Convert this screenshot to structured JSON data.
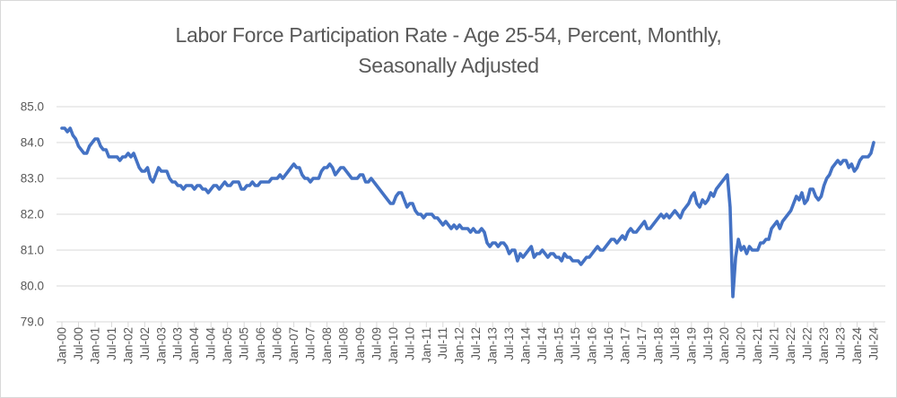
{
  "chart_data": {
    "type": "line",
    "title": "Labor Force Participation Rate - Age 25-54, Percent, Monthly, Seasonally Adjusted",
    "title_lines": [
      "Labor Force Participation Rate - Age 25-54, Percent, Monthly,",
      "Seasonally Adjusted"
    ],
    "xlabel": "",
    "ylabel": "",
    "legend": "none",
    "grid": "horizontal",
    "ylim": [
      79.0,
      85.0
    ],
    "y_tick_labels": [
      "79.0",
      "80.0",
      "81.0",
      "82.0",
      "83.0",
      "84.0",
      "85.0"
    ],
    "x_tick_labels": [
      "Jan-00",
      "Jul-00",
      "Jan-01",
      "Jul-01",
      "Jan-02",
      "Jul-02",
      "Jan-03",
      "Jul-03",
      "Jan-04",
      "Jul-04",
      "Jan-05",
      "Jul-05",
      "Jan-06",
      "Jul-06",
      "Jan-07",
      "Jul-07",
      "Jan-08",
      "Jul-08",
      "Jan-09",
      "Jul-09",
      "Jan-10",
      "Jul-10",
      "Jan-11",
      "Jul-11",
      "Jan-12",
      "Jul-12",
      "Jan-13",
      "Jul-13",
      "Jan-14",
      "Jul-14",
      "Jan-15",
      "Jul-15",
      "Jan-16",
      "Jul-16",
      "Jan-17",
      "Jul-17",
      "Jan-18",
      "Jul-18",
      "Jan-19",
      "Jul-19",
      "Jan-20",
      "Jul-20",
      "Jan-21",
      "Jul-21",
      "Jan-22",
      "Jul-22",
      "Jan-23",
      "Jul-23",
      "Jan-24",
      "Jul-24"
    ],
    "frequency": "monthly",
    "x_start": "Jan-00",
    "x_end": "Jul-24",
    "series": [
      {
        "name": "Labor Force Participation Rate - Age 25-54",
        "color": "#4472C4",
        "values": [
          84.4,
          84.4,
          84.3,
          84.4,
          84.2,
          84.1,
          83.9,
          83.8,
          83.7,
          83.7,
          83.9,
          84.0,
          84.1,
          84.1,
          83.9,
          83.8,
          83.8,
          83.6,
          83.6,
          83.6,
          83.6,
          83.5,
          83.6,
          83.6,
          83.7,
          83.6,
          83.7,
          83.5,
          83.3,
          83.2,
          83.2,
          83.3,
          83.0,
          82.9,
          83.1,
          83.3,
          83.2,
          83.2,
          83.2,
          83.0,
          82.9,
          82.9,
          82.8,
          82.8,
          82.7,
          82.8,
          82.8,
          82.8,
          82.7,
          82.8,
          82.8,
          82.7,
          82.7,
          82.6,
          82.7,
          82.8,
          82.8,
          82.7,
          82.8,
          82.9,
          82.8,
          82.8,
          82.9,
          82.9,
          82.9,
          82.7,
          82.7,
          82.8,
          82.8,
          82.9,
          82.8,
          82.8,
          82.9,
          82.9,
          82.9,
          82.9,
          83.0,
          83.0,
          83.0,
          83.1,
          83.0,
          83.1,
          83.2,
          83.3,
          83.4,
          83.3,
          83.3,
          83.1,
          83.0,
          83.0,
          82.9,
          83.0,
          83.0,
          83.0,
          83.2,
          83.3,
          83.3,
          83.4,
          83.3,
          83.1,
          83.2,
          83.3,
          83.3,
          83.2,
          83.1,
          83.0,
          83.0,
          83.0,
          83.1,
          83.1,
          82.9,
          82.9,
          83.0,
          82.9,
          82.8,
          82.7,
          82.6,
          82.5,
          82.4,
          82.3,
          82.3,
          82.5,
          82.6,
          82.6,
          82.4,
          82.2,
          82.3,
          82.3,
          82.1,
          82.0,
          82.0,
          81.9,
          82.0,
          82.0,
          82.0,
          81.9,
          81.9,
          81.8,
          81.7,
          81.8,
          81.7,
          81.6,
          81.7,
          81.6,
          81.7,
          81.6,
          81.6,
          81.6,
          81.5,
          81.6,
          81.5,
          81.5,
          81.6,
          81.5,
          81.2,
          81.1,
          81.2,
          81.2,
          81.1,
          81.2,
          81.2,
          81.1,
          80.9,
          81.0,
          81.0,
          80.7,
          80.9,
          80.8,
          80.9,
          81.0,
          81.1,
          80.8,
          80.9,
          80.9,
          81.0,
          80.9,
          80.8,
          80.9,
          80.9,
          80.8,
          80.8,
          80.7,
          80.9,
          80.8,
          80.8,
          80.7,
          80.7,
          80.7,
          80.6,
          80.7,
          80.8,
          80.8,
          80.9,
          81.0,
          81.1,
          81.0,
          81.0,
          81.1,
          81.2,
          81.3,
          81.3,
          81.2,
          81.3,
          81.4,
          81.3,
          81.5,
          81.6,
          81.5,
          81.5,
          81.6,
          81.7,
          81.8,
          81.6,
          81.6,
          81.7,
          81.8,
          81.9,
          82.0,
          81.9,
          82.0,
          81.9,
          82.0,
          82.1,
          82.0,
          81.9,
          82.1,
          82.2,
          82.3,
          82.5,
          82.6,
          82.3,
          82.2,
          82.4,
          82.3,
          82.4,
          82.6,
          82.5,
          82.7,
          82.8,
          82.9,
          83.0,
          83.1,
          82.2,
          79.7,
          80.8,
          81.3,
          81.0,
          81.1,
          80.9,
          81.1,
          81.0,
          81.0,
          81.0,
          81.2,
          81.2,
          81.3,
          81.3,
          81.6,
          81.7,
          81.8,
          81.6,
          81.8,
          81.9,
          82.0,
          82.1,
          82.3,
          82.5,
          82.4,
          82.6,
          82.3,
          82.4,
          82.7,
          82.7,
          82.5,
          82.4,
          82.5,
          82.8,
          83.0,
          83.1,
          83.3,
          83.4,
          83.5,
          83.4,
          83.5,
          83.5,
          83.3,
          83.4,
          83.2,
          83.3,
          83.5,
          83.6,
          83.6,
          83.6,
          83.7,
          84.0
        ]
      }
    ],
    "colors": {
      "line": "#4472C4",
      "grid": "#D9D9D9",
      "axis_text": "#595959",
      "title_text": "#595959",
      "frame_border": "#D9D9D9"
    }
  }
}
